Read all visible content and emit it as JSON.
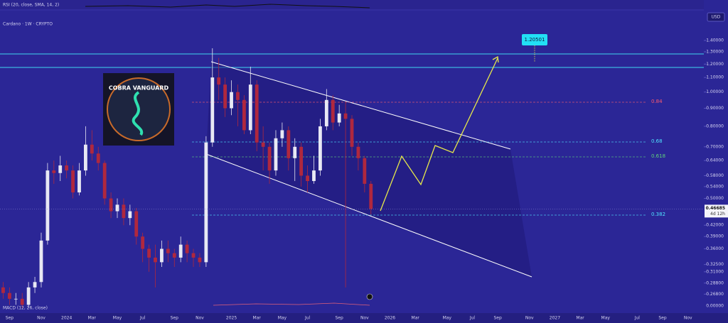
{
  "chart_data": {
    "type": "candlestick",
    "title": "Cardano · 1W · CRYPTO",
    "currency": "USD",
    "rsi_label": "RSI (20, close, SMA, 14, 2)",
    "macd_label": "MACD (12, 26, close)",
    "macd_zero_label": "0.00000",
    "countdown": "4d 12h",
    "logo_text": "COBRA VANGUARD",
    "target": 1.20501,
    "fib_levels": [
      {
        "ratio": 0.84,
        "color": "#ff5a6e"
      },
      {
        "ratio": 0.68,
        "color": "#4fe3ff"
      },
      {
        "ratio": 0.618,
        "color": "#5fd37a"
      },
      {
        "ratio": 0.382,
        "color": "#4fe3ff"
      }
    ],
    "log_scale": true,
    "grid": false,
    "up_color": "#e8e8f4",
    "down_color": "#b0283e",
    "categories": [
      null,
      "Sep",
      null,
      null,
      null,
      null,
      "Nov",
      null,
      null,
      null,
      "2024",
      null,
      null,
      null,
      "Mar",
      null,
      null,
      null,
      "May",
      null,
      null,
      null,
      "Jul",
      null,
      null,
      null,
      null,
      "Sep",
      null,
      null,
      null,
      "Nov",
      null,
      null,
      null,
      null,
      "2025",
      null,
      null,
      null,
      "Mar",
      null,
      null,
      null,
      "May",
      null,
      null,
      null,
      "Jul",
      null,
      null,
      null,
      null,
      "Sep",
      null,
      null,
      null,
      "Nov",
      null,
      null,
      null,
      "2026",
      null,
      null,
      null,
      "Mar",
      null,
      null,
      null,
      null,
      "May",
      null,
      null,
      null,
      "Jul",
      null,
      null,
      null,
      "Sep",
      null,
      null,
      null,
      null,
      "Nov",
      null,
      null,
      null,
      "2027",
      null,
      null,
      null,
      "Mar",
      null,
      null,
      null,
      "May",
      null,
      null,
      null,
      null,
      "Jul",
      null,
      null,
      null,
      "Sep",
      null,
      null,
      null,
      "Nov",
      null,
      null
    ],
    "open": [
      0.28,
      0.27,
      0.26,
      0.26,
      0.25,
      0.28,
      0.29,
      0.38,
      0.6,
      0.59,
      0.62,
      0.6,
      0.52,
      0.6,
      0.71,
      0.67,
      0.63,
      0.5,
      0.46,
      0.48,
      0.44,
      0.46,
      0.39,
      0.36,
      0.34,
      0.33,
      0.36,
      0.35,
      0.34,
      0.37,
      0.35,
      0.34,
      0.33,
      0.72,
      1.1,
      1.05,
      0.9,
      1.0,
      0.95,
      0.78,
      1.05,
      0.72,
      0.7,
      0.6,
      0.74,
      0.78,
      0.65,
      0.7,
      0.58,
      0.56,
      0.6,
      0.8,
      0.95,
      0.82,
      0.87,
      0.84,
      0.7,
      0.65,
      0.55,
      null,
      null,
      null,
      null,
      null,
      null,
      null,
      null,
      null,
      null,
      null,
      null,
      null,
      null,
      null,
      null,
      null,
      null,
      null,
      null,
      null,
      null,
      null,
      null,
      null,
      null,
      null,
      null,
      null,
      null,
      null,
      null,
      null,
      null,
      null,
      null,
      null,
      null,
      null,
      null,
      null,
      null,
      null,
      null,
      null,
      null,
      null,
      null,
      null,
      null,
      null,
      null
    ],
    "high": [
      0.29,
      0.28,
      0.27,
      0.27,
      0.29,
      0.3,
      0.4,
      0.63,
      0.64,
      0.66,
      0.64,
      0.62,
      0.63,
      0.8,
      0.78,
      0.7,
      0.64,
      0.52,
      0.5,
      0.5,
      0.48,
      0.47,
      0.4,
      0.37,
      0.37,
      0.38,
      0.38,
      0.36,
      0.39,
      0.38,
      0.36,
      0.35,
      0.75,
      1.33,
      1.25,
      1.1,
      1.08,
      1.05,
      0.98,
      1.18,
      1.08,
      0.8,
      0.72,
      0.78,
      0.82,
      0.8,
      0.74,
      0.72,
      0.62,
      0.66,
      0.84,
      1.02,
      0.98,
      0.92,
      0.94,
      0.86,
      0.72,
      0.66,
      0.56,
      null,
      null,
      null,
      null,
      null,
      null,
      null,
      null,
      null,
      null,
      null,
      null,
      null,
      null,
      null,
      null,
      null,
      null,
      null,
      null,
      null,
      null,
      null,
      null,
      null,
      null,
      null,
      null,
      null,
      null,
      null,
      null,
      null,
      null,
      null,
      null,
      null,
      null,
      null,
      null,
      null,
      null,
      null,
      null,
      null,
      null,
      null,
      null,
      null,
      null,
      null,
      null
    ],
    "low": [
      0.26,
      0.25,
      0.25,
      0.245,
      0.245,
      0.27,
      0.28,
      0.37,
      0.55,
      0.56,
      0.57,
      0.5,
      0.51,
      0.58,
      0.64,
      0.6,
      0.48,
      0.44,
      0.44,
      0.42,
      0.42,
      0.37,
      0.33,
      0.31,
      0.28,
      0.32,
      0.33,
      0.32,
      0.33,
      0.33,
      0.32,
      0.32,
      0.32,
      0.7,
      0.95,
      0.85,
      0.86,
      0.8,
      0.76,
      0.76,
      0.68,
      0.6,
      0.55,
      0.58,
      0.7,
      0.6,
      0.56,
      0.54,
      0.52,
      0.55,
      0.58,
      0.78,
      0.78,
      0.8,
      0.28,
      0.66,
      0.6,
      0.52,
      0.45,
      null,
      null,
      null,
      null,
      null,
      null,
      null,
      null,
      null,
      null,
      null,
      null,
      null,
      null,
      null,
      null,
      null,
      null,
      null,
      null,
      null,
      null,
      null,
      null,
      null,
      null,
      null,
      null,
      null,
      null,
      null,
      null,
      null,
      null,
      null,
      null,
      null,
      null,
      null,
      null,
      null,
      null,
      null,
      null,
      null,
      null,
      null,
      null,
      null,
      null,
      null,
      null
    ],
    "close": [
      0.27,
      0.26,
      0.26,
      0.25,
      0.28,
      0.29,
      0.38,
      0.6,
      0.59,
      0.62,
      0.6,
      0.52,
      0.6,
      0.71,
      0.67,
      0.63,
      0.5,
      0.46,
      0.48,
      0.44,
      0.46,
      0.39,
      0.36,
      0.34,
      0.33,
      0.36,
      0.35,
      0.34,
      0.37,
      0.35,
      0.34,
      0.33,
      0.72,
      1.1,
      1.05,
      0.9,
      1.0,
      0.95,
      0.78,
      1.05,
      0.72,
      0.7,
      0.6,
      0.74,
      0.78,
      0.65,
      0.7,
      0.58,
      0.56,
      0.6,
      0.8,
      0.95,
      0.82,
      0.87,
      0.84,
      0.7,
      0.65,
      0.55,
      0.46685,
      null,
      null,
      null,
      null,
      null,
      null,
      null,
      null,
      null,
      null,
      null,
      null,
      null,
      null,
      null,
      null,
      null,
      null,
      null,
      null,
      null,
      null,
      null,
      null,
      null,
      null,
      null,
      null,
      null,
      null,
      null,
      null,
      null,
      null,
      null,
      null,
      null,
      null,
      null,
      null,
      null,
      null,
      null,
      null,
      null,
      null,
      null,
      null,
      null,
      null,
      null,
      null
    ],
    "ylim": [
      0.238,
      1.7
    ],
    "yticks": [
      {
        "value": 1.4,
        "label": "1.40000"
      },
      {
        "value": 1.3,
        "label": "1.30000"
      },
      {
        "value": 1.2,
        "label": "1.20000"
      },
      {
        "value": 1.1,
        "label": "1.10000"
      },
      {
        "value": 1.0,
        "label": "1.00000"
      },
      {
        "value": 0.9,
        "label": "0.90000"
      },
      {
        "value": 0.8,
        "label": "0.80000"
      },
      {
        "value": 0.7,
        "label": "0.70000"
      },
      {
        "value": 0.64,
        "label": "0.64000"
      },
      {
        "value": 0.58,
        "label": "0.58000"
      },
      {
        "value": 0.54,
        "label": "0.54000"
      },
      {
        "value": 0.5,
        "label": "0.50000"
      },
      {
        "value": 0.42,
        "label": "0.42000"
      },
      {
        "value": 0.39,
        "label": "0.39000"
      },
      {
        "value": 0.36,
        "label": "0.36000"
      },
      {
        "value": 0.325,
        "label": "0.32500"
      },
      {
        "value": 0.31,
        "label": "0.31000"
      },
      {
        "value": 0.288,
        "label": "0.28800"
      },
      {
        "value": 0.268,
        "label": "0.26800"
      }
    ]
  }
}
